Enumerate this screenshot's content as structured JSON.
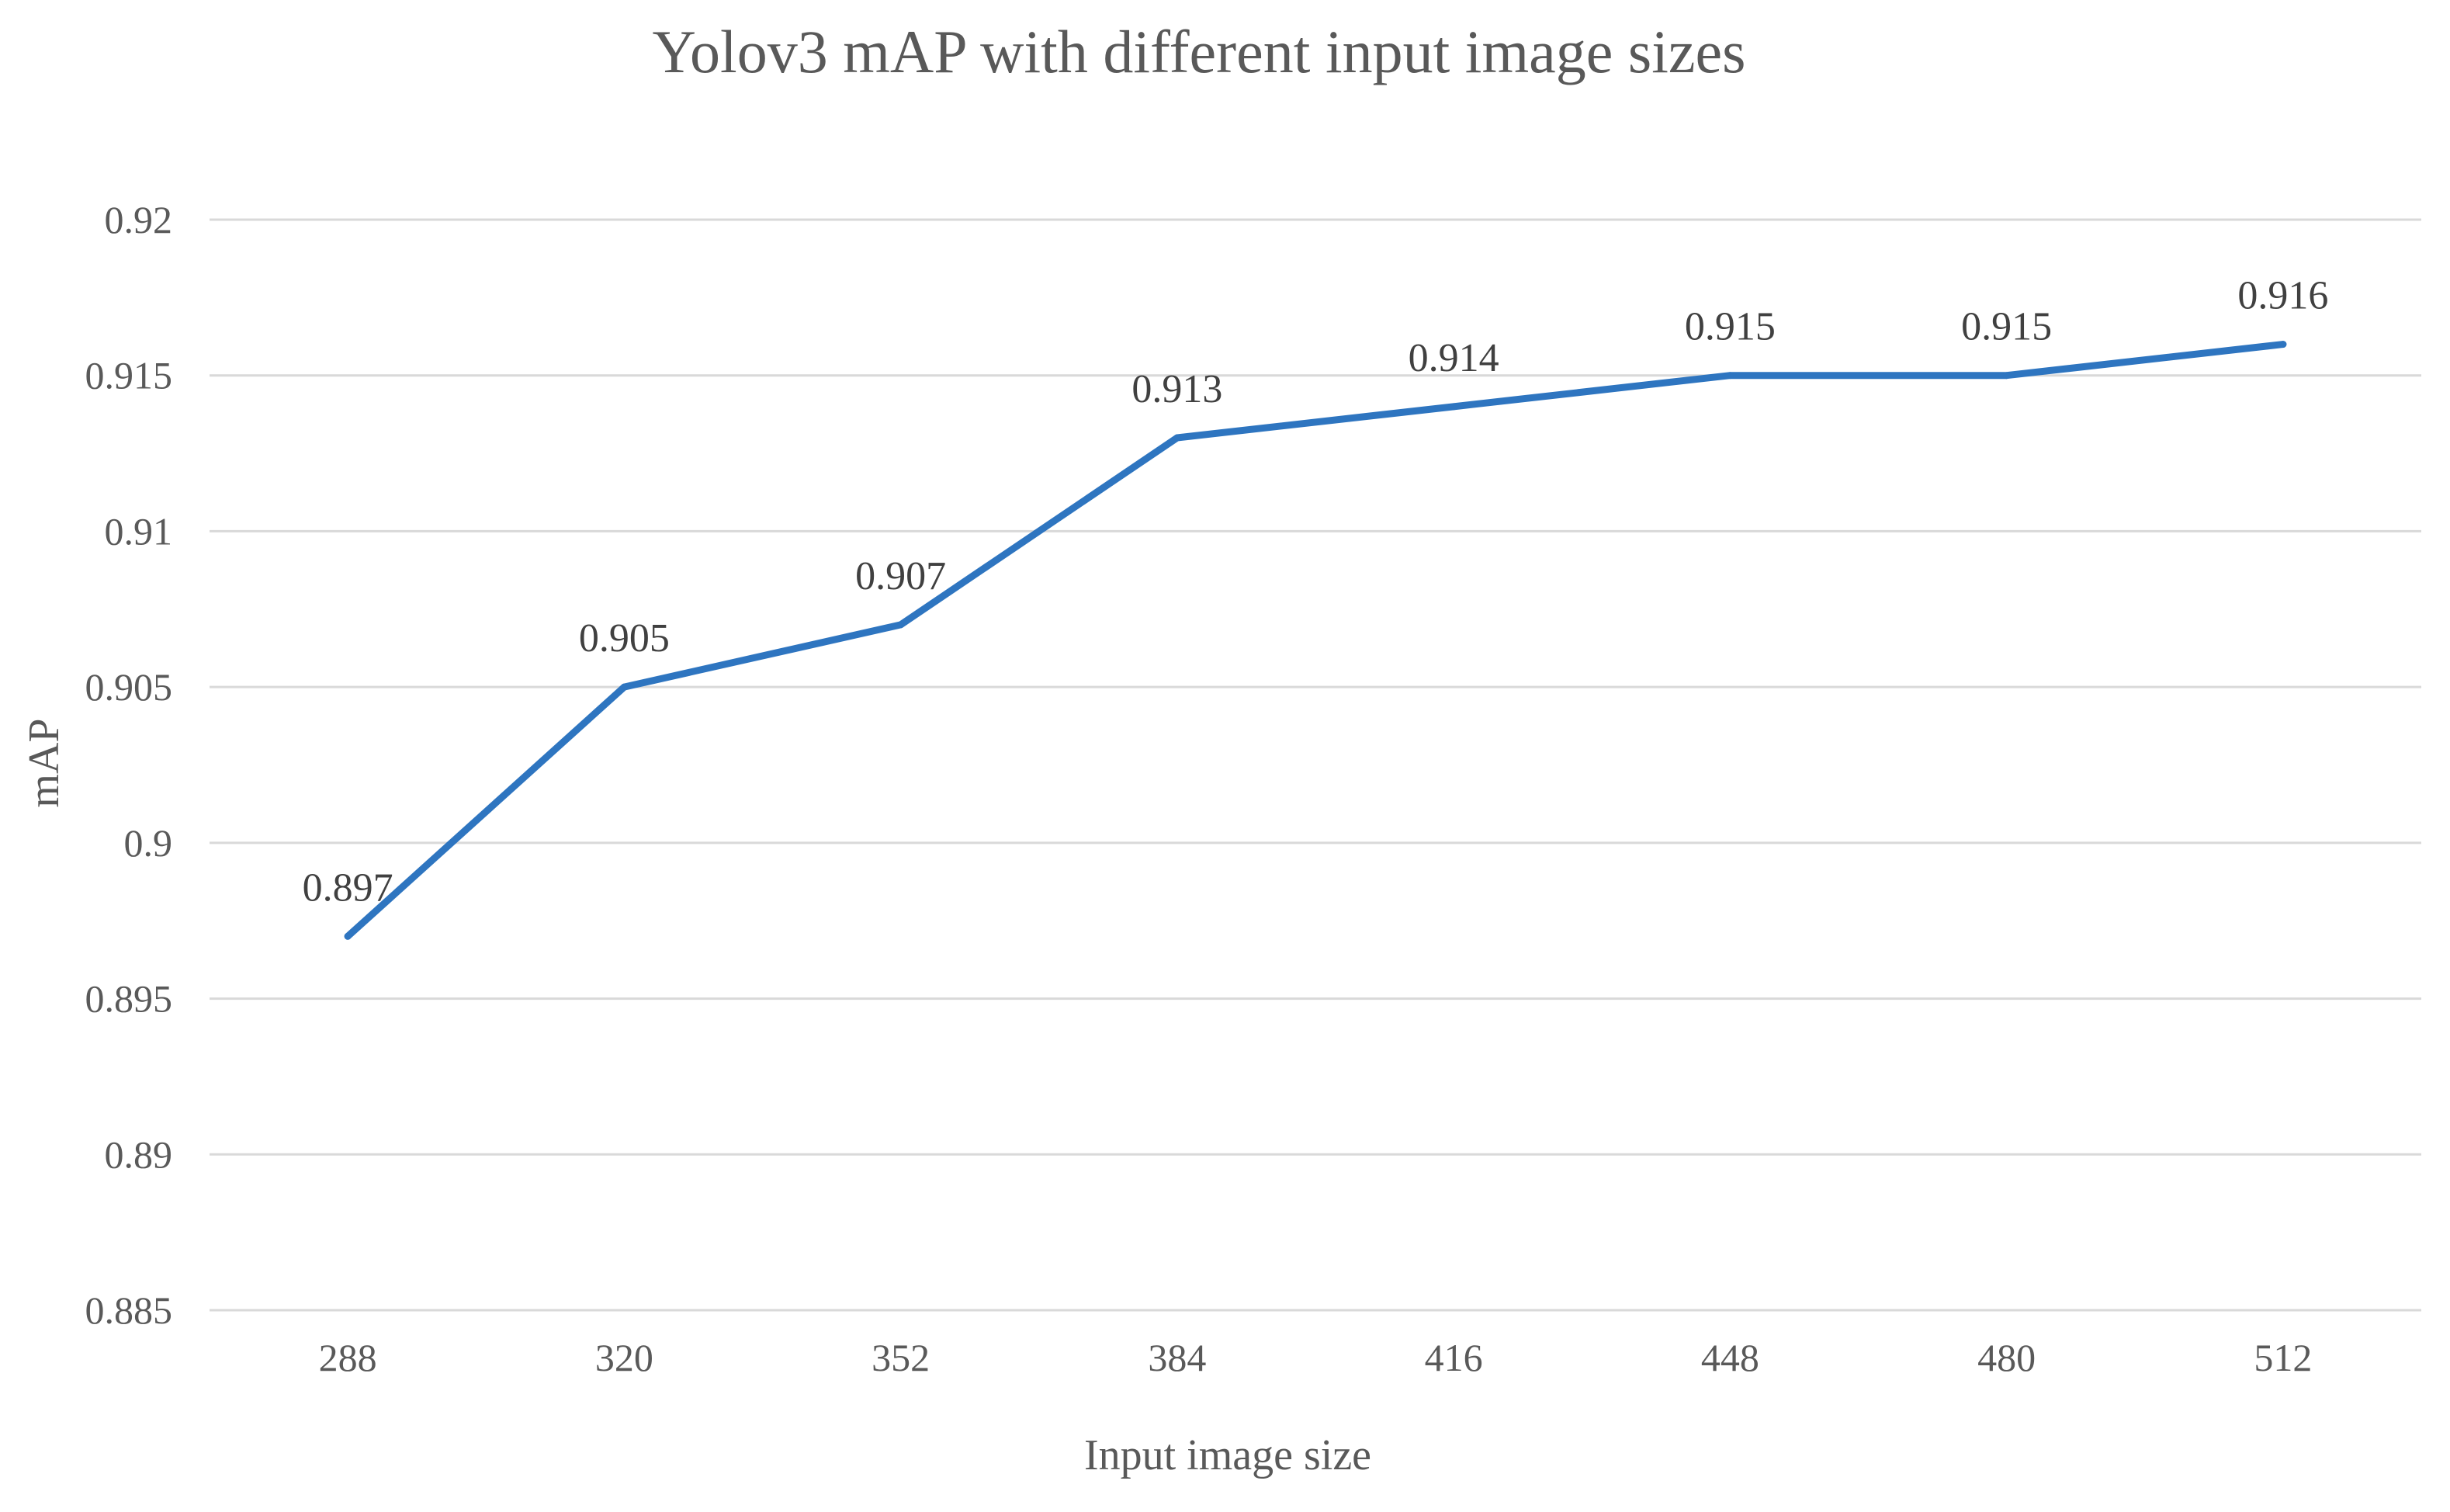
{
  "chart_data": {
    "type": "line",
    "title": "Yolov3 mAP with different input image sizes",
    "xlabel": "Input image size",
    "ylabel": "mAP",
    "categories": [
      "288",
      "320",
      "352",
      "384",
      "416",
      "448",
      "480",
      "512"
    ],
    "series": [
      {
        "values": [
          0.897,
          0.905,
          0.907,
          0.913,
          0.914,
          0.915,
          0.915,
          0.916
        ],
        "color": "#2e75c0"
      }
    ],
    "data_labels": [
      "0.897",
      "0.905",
      "0.907",
      "0.913",
      "0.914",
      "0.915",
      "0.915",
      "0.916"
    ],
    "ylim": [
      0.885,
      0.92
    ],
    "y_ticks": [
      "0.885",
      "0.89",
      "0.895",
      "0.9",
      "0.905",
      "0.91",
      "0.915",
      "0.92"
    ],
    "grid": true,
    "legend": "none"
  }
}
